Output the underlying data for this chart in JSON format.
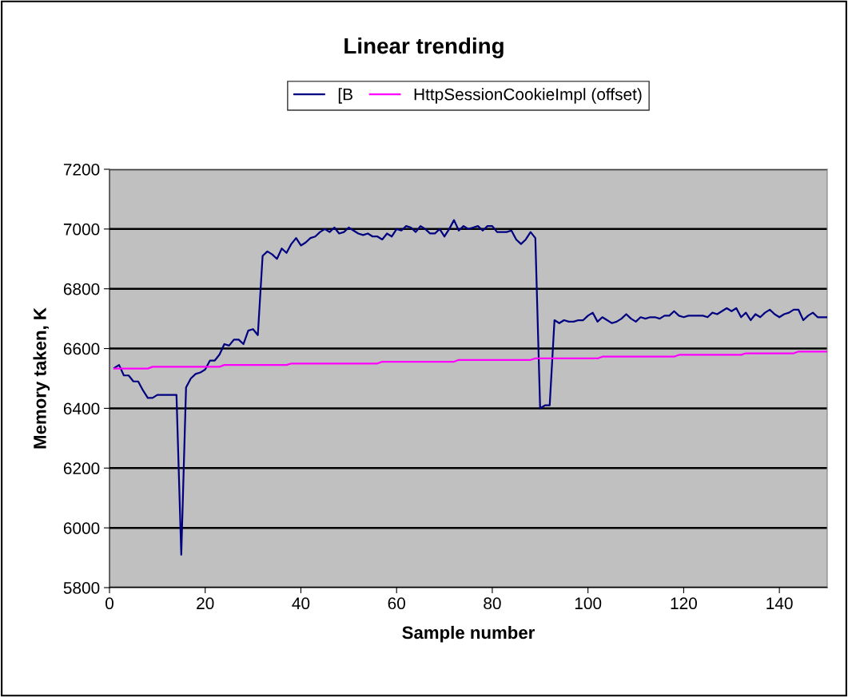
{
  "chart_data": {
    "type": "line",
    "title": "Linear trending",
    "xlabel": "Sample number",
    "ylabel": "Memory taken, K",
    "xlim": [
      0,
      150
    ],
    "xticks": [
      0,
      20,
      40,
      60,
      80,
      100,
      120,
      140
    ],
    "ylim": [
      5800,
      7200
    ],
    "yticks": [
      5800,
      6000,
      6200,
      6400,
      6600,
      6800,
      7000,
      7200
    ],
    "grid": "y",
    "legend": "top",
    "marker": "none",
    "line_style": "solid",
    "series": [
      {
        "name": "[B",
        "color": "#000080",
        "x": [
          1,
          2,
          3,
          4,
          5,
          6,
          7,
          8,
          9,
          10,
          14,
          15,
          16,
          17,
          18,
          19,
          20,
          21,
          22,
          23,
          24,
          25,
          26,
          27,
          28,
          29,
          30,
          31,
          32,
          33,
          34,
          35,
          36,
          37,
          38,
          39,
          40,
          41,
          42,
          43,
          44,
          45,
          46,
          47,
          48,
          49,
          50,
          51,
          52,
          53,
          54,
          55,
          56,
          57,
          58,
          59,
          60,
          61,
          62,
          63,
          64,
          65,
          66,
          67,
          68,
          69,
          70,
          71,
          72,
          73,
          74,
          75,
          76,
          77,
          78,
          79,
          80,
          81,
          82,
          83,
          84,
          85,
          86,
          87,
          88,
          89,
          90,
          91,
          92,
          93,
          94,
          95,
          96,
          97,
          98,
          99,
          100,
          101,
          102,
          103,
          104,
          105,
          106,
          107,
          108,
          109,
          110,
          111,
          112,
          113,
          114,
          115,
          116,
          117,
          118,
          119,
          120,
          121,
          122,
          123,
          124,
          125,
          126,
          127,
          128,
          129,
          130,
          131,
          132,
          133,
          134,
          135,
          136,
          137,
          138,
          139,
          140,
          141,
          142,
          143,
          144,
          145,
          146,
          147,
          148,
          149,
          150
        ],
        "values": [
          6535,
          6545,
          6510,
          6510,
          6490,
          6490,
          6460,
          6435,
          6435,
          6445,
          6445,
          5910,
          6470,
          6500,
          6515,
          6520,
          6530,
          6560,
          6560,
          6580,
          6615,
          6610,
          6630,
          6630,
          6615,
          6660,
          6665,
          6645,
          6910,
          6925,
          6915,
          6900,
          6935,
          6920,
          6950,
          6970,
          6945,
          6955,
          6970,
          6975,
          6990,
          7000,
          6990,
          7005,
          6985,
          6990,
          7005,
          6995,
          6985,
          6980,
          6985,
          6975,
          6975,
          6965,
          6985,
          6975,
          7000,
          6995,
          7010,
          7005,
          6990,
          7010,
          7000,
          6985,
          6985,
          7000,
          6975,
          7000,
          7030,
          6995,
          7010,
          7000,
          7005,
          7010,
          6995,
          7010,
          7010,
          6990,
          6990,
          6990,
          6995,
          6965,
          6950,
          6965,
          6990,
          6970,
          6400,
          6410,
          6410,
          6695,
          6685,
          6695,
          6690,
          6690,
          6695,
          6695,
          6710,
          6720,
          6690,
          6705,
          6695,
          6685,
          6690,
          6700,
          6715,
          6700,
          6690,
          6705,
          6700,
          6705,
          6705,
          6700,
          6710,
          6710,
          6725,
          6710,
          6705,
          6710,
          6710,
          6710,
          6710,
          6705,
          6720,
          6715,
          6725,
          6735,
          6725,
          6735,
          6705,
          6720,
          6695,
          6715,
          6705,
          6720,
          6730,
          6715,
          6705,
          6715,
          6720,
          6730,
          6730,
          6695,
          6710,
          6720,
          6705,
          6705,
          6705
        ]
      },
      {
        "name": "HttpSessionCookieImpl (offset)",
        "color": "#ff00ff",
        "x": [
          1,
          8,
          9,
          23,
          24,
          37,
          38,
          56,
          57,
          72,
          73,
          88,
          89,
          102,
          103,
          118,
          119,
          132,
          133,
          143,
          144,
          150
        ],
        "values": [
          6533,
          6533,
          6539,
          6539,
          6545,
          6545,
          6550,
          6550,
          6556,
          6556,
          6562,
          6562,
          6567,
          6567,
          6573,
          6573,
          6579,
          6579,
          6584,
          6584,
          6590,
          6590
        ]
      }
    ]
  }
}
